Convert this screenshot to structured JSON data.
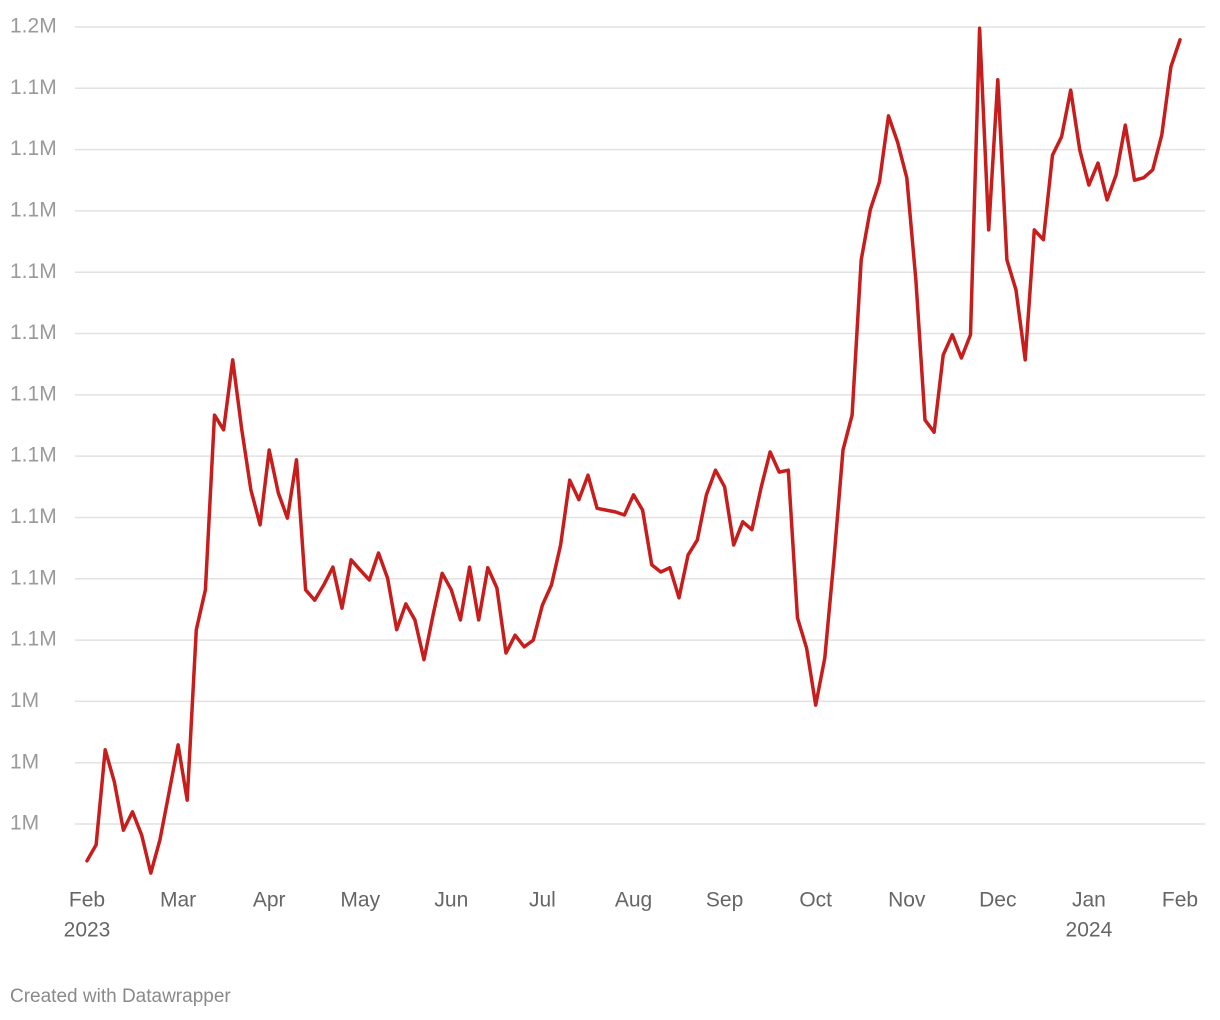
{
  "chart_data": {
    "type": "line",
    "categories": [
      "Feb",
      null,
      null,
      null,
      null,
      null,
      null,
      null,
      null,
      null,
      "Mar",
      null,
      null,
      null,
      null,
      null,
      null,
      null,
      null,
      null,
      "Apr",
      null,
      null,
      null,
      null,
      null,
      null,
      null,
      null,
      null,
      "May",
      null,
      null,
      null,
      null,
      null,
      null,
      null,
      null,
      null,
      "Jun",
      null,
      null,
      null,
      null,
      null,
      null,
      null,
      null,
      null,
      "Jul",
      null,
      null,
      null,
      null,
      null,
      null,
      null,
      null,
      null,
      "Aug",
      null,
      null,
      null,
      null,
      null,
      null,
      null,
      null,
      null,
      "Sep",
      null,
      null,
      null,
      null,
      null,
      null,
      null,
      null,
      null,
      "Oct",
      null,
      null,
      null,
      null,
      null,
      null,
      null,
      null,
      null,
      "Nov",
      null,
      null,
      null,
      null,
      null,
      null,
      null,
      null,
      null,
      "Dec",
      null,
      null,
      null,
      null,
      null,
      null,
      null,
      null,
      null,
      "Jan",
      null,
      null,
      null,
      null,
      null,
      null,
      null,
      null,
      null,
      "Feb"
    ],
    "year_labels": {
      "0": "2023",
      "110": "2024"
    },
    "series": [
      {
        "color": "#c71e1d",
        "values": [
          1014000,
          1016600,
          1032100,
          1026900,
          1019000,
          1022000,
          1018200,
          1012000,
          1017400,
          1025100,
          1032900,
          1023900,
          1051700,
          1058200,
          1086700,
          1084300,
          1095700,
          1084300,
          1074500,
          1068800,
          1081000,
          1074000,
          1069900,
          1079400,
          1058200,
          1056500,
          1059000,
          1061900,
          1055200,
          1063100,
          1061400,
          1059800,
          1064200,
          1060100,
          1051700,
          1055900,
          1053300,
          1046800,
          1054100,
          1060900,
          1058200,
          1053300,
          1061900,
          1053300,
          1061800,
          1058500,
          1047900,
          1050800,
          1048900,
          1050000,
          1055700,
          1059000,
          1065500,
          1076100,
          1072900,
          1076900,
          1071500,
          1071200,
          1070900,
          1070400,
          1073700,
          1071200,
          1062300,
          1061100,
          1061800,
          1056900,
          1063900,
          1066300,
          1073700,
          1077700,
          1075000,
          1065500,
          1069300,
          1068000,
          1074800,
          1080700,
          1077400,
          1077700,
          1053600,
          1048700,
          1039400,
          1047100,
          1063100,
          1081000,
          1086700,
          1112000,
          1120200,
          1124700,
          1135500,
          1131200,
          1125400,
          1108700,
          1085900,
          1083900,
          1096500,
          1099800,
          1096000,
          1099800,
          1149800,
          1116900,
          1141400,
          1112000,
          1107100,
          1095700,
          1116900,
          1115300,
          1129100,
          1132100,
          1139700,
          1129900,
          1124200,
          1127800,
          1121800,
          1125900,
          1134000,
          1125000,
          1125400,
          1126700,
          1132400,
          1143500,
          1147900
        ]
      }
    ],
    "ylim": [
      1011000,
      1152000
    ],
    "yticks": [
      {
        "value": 1150000,
        "label": "1.2M"
      },
      {
        "value": 1140000,
        "label": "1.1M"
      },
      {
        "value": 1130000,
        "label": "1.1M"
      },
      {
        "value": 1120000,
        "label": "1.1M"
      },
      {
        "value": 1110000,
        "label": "1.1M"
      },
      {
        "value": 1100000,
        "label": "1.1M"
      },
      {
        "value": 1090000,
        "label": "1.1M"
      },
      {
        "value": 1080000,
        "label": "1.1M"
      },
      {
        "value": 1070000,
        "label": "1.1M"
      },
      {
        "value": 1060000,
        "label": "1.1M"
      },
      {
        "value": 1050000,
        "label": "1.1M"
      },
      {
        "value": 1040000,
        "label": "1M"
      },
      {
        "value": 1030000,
        "label": "1M"
      },
      {
        "value": 1020000,
        "label": "1M"
      }
    ],
    "grid": true,
    "footer": "Created with Datawrapper"
  }
}
